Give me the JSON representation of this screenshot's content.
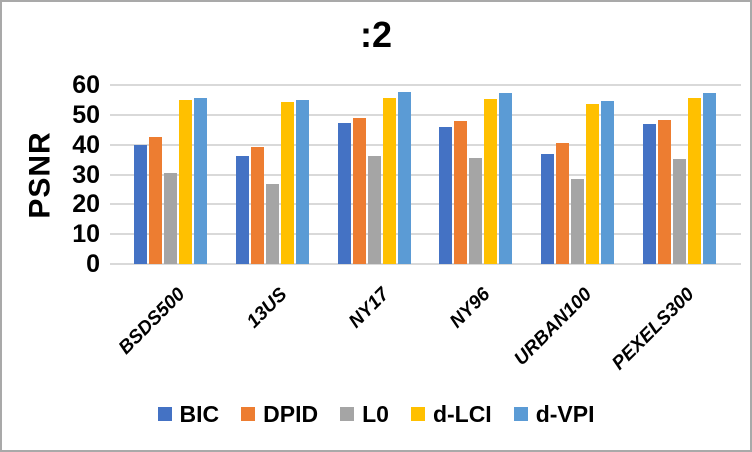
{
  "chart_data": {
    "type": "bar",
    "title": ":2",
    "ylabel": "PSNR",
    "xlabel": "",
    "ylim": [
      0,
      60
    ],
    "yticks": [
      0,
      10,
      20,
      30,
      40,
      50,
      60
    ],
    "grid": true,
    "legend_position": "bottom",
    "categories": [
      "BSDS500",
      "13US",
      "NY17",
      "NY96",
      "URBAN100",
      "PEXELS300"
    ],
    "series": [
      {
        "name": "BIC",
        "color": "#4472C4",
        "values": [
          40.0,
          36.1,
          47.4,
          45.9,
          36.9,
          46.8
        ]
      },
      {
        "name": "DPID",
        "color": "#ED7D31",
        "values": [
          42.7,
          39.3,
          49.0,
          48.0,
          40.4,
          48.2
        ]
      },
      {
        "name": "L0",
        "color": "#A5A5A5",
        "values": [
          30.5,
          26.9,
          36.2,
          35.5,
          28.4,
          35.2
        ]
      },
      {
        "name": "d-LCI",
        "color": "#FFC000",
        "values": [
          54.9,
          54.2,
          55.5,
          55.2,
          53.6,
          55.6
        ]
      },
      {
        "name": "d-VPI",
        "color": "#5B9BD5",
        "values": [
          55.8,
          54.9,
          57.5,
          57.2,
          54.6,
          57.4
        ]
      }
    ],
    "gridline_color": "#D9D9D9",
    "text_color": "#000000"
  }
}
